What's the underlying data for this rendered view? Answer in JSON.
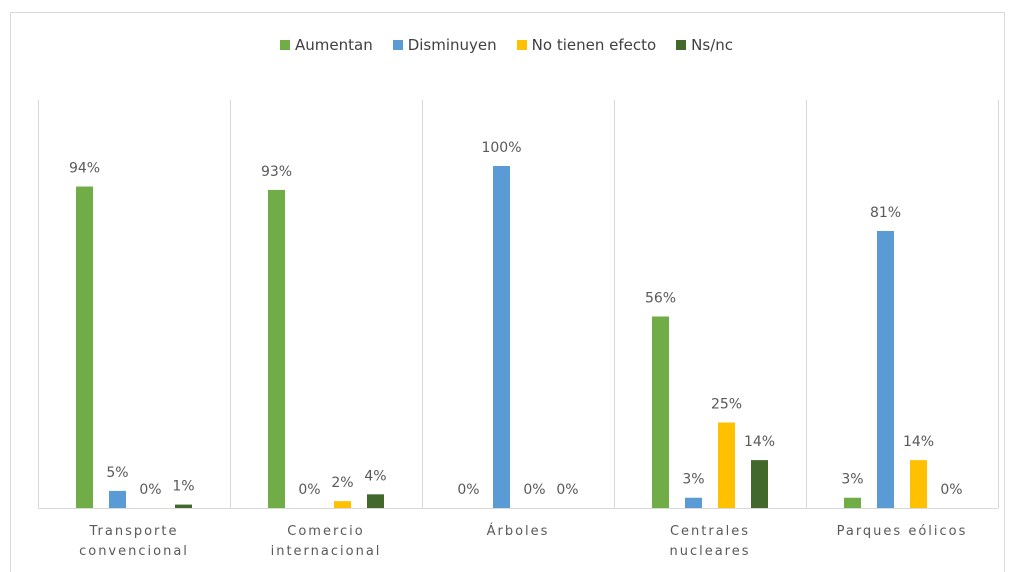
{
  "chart_data": {
    "type": "bar",
    "categories": [
      "Transporte convencional",
      "Comercio internacional",
      "Árboles",
      "Centrales nucleares",
      "Parques eólicos"
    ],
    "series": [
      {
        "name": "Aumentan",
        "color": "#70ad47",
        "values": [
          94,
          93,
          0,
          56,
          3
        ],
        "value_labels": [
          "94%",
          "93%",
          "0%",
          "56%",
          "3%"
        ]
      },
      {
        "name": "Disminuyen",
        "color": "#5b9bd5",
        "values": [
          5,
          0,
          100,
          3,
          81
        ],
        "value_labels": [
          "5%",
          "0%",
          "100%",
          "3%",
          "81%"
        ]
      },
      {
        "name": "No tienen efecto",
        "color": "#ffc000",
        "values": [
          0,
          2,
          0,
          25,
          14
        ],
        "value_labels": [
          "0%",
          "2%",
          "0%",
          "25%",
          "14%"
        ]
      },
      {
        "name": "Ns/nc",
        "color": "#43682b",
        "values": [
          1,
          4,
          0,
          14,
          0
        ],
        "value_labels": [
          "1%",
          "4%",
          "0%",
          "14%",
          "0%"
        ]
      }
    ],
    "ylim": [
      0,
      100
    ],
    "legend": "top"
  }
}
